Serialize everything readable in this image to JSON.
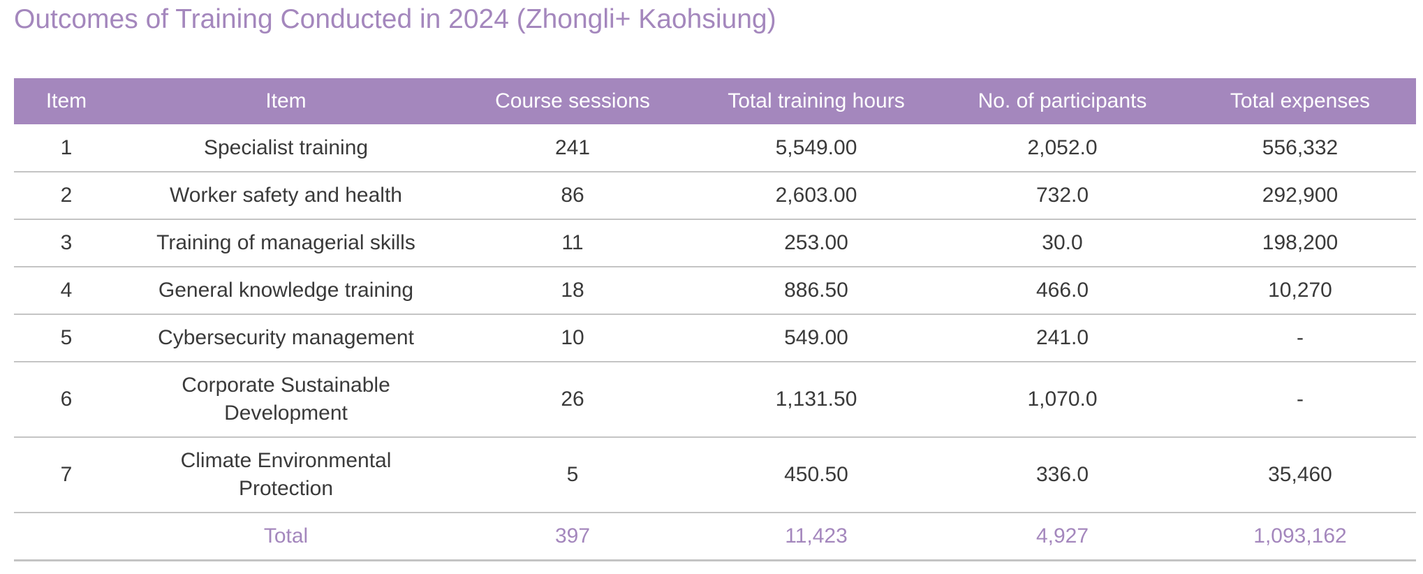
{
  "title": "Outcomes of Training Conducted in 2024 (Zhongli+ Kaohsiung)",
  "columns": [
    "Item",
    "Item",
    "Course sessions",
    "Total training hours",
    "No. of participants",
    "Total expenses"
  ],
  "rows": [
    {
      "no": "1",
      "item": "Specialist training",
      "sessions": "241",
      "hours": "5,549.00",
      "participants": "2,052.0",
      "expenses": "556,332"
    },
    {
      "no": "2",
      "item": "Worker safety and health",
      "sessions": "86",
      "hours": "2,603.00",
      "participants": "732.0",
      "expenses": "292,900"
    },
    {
      "no": "3",
      "item": "Training of managerial skills",
      "sessions": "11",
      "hours": "253.00",
      "participants": "30.0",
      "expenses": "198,200"
    },
    {
      "no": "4",
      "item": "General knowledge training",
      "sessions": "18",
      "hours": "886.50",
      "participants": "466.0",
      "expenses": "10,270"
    },
    {
      "no": "5",
      "item": "Cybersecurity management",
      "sessions": "10",
      "hours": "549.00",
      "participants": "241.0",
      "expenses": "-"
    },
    {
      "no": "6",
      "item_line1": "Corporate Sustainable",
      "item_line2": "Development",
      "sessions": "26",
      "hours": "1,131.50",
      "participants": "1,070.0",
      "expenses": "-"
    },
    {
      "no": "7",
      "item_line1": "Climate Environmental",
      "item_line2": "Protection",
      "sessions": "5",
      "hours": "450.50",
      "participants": "336.0",
      "expenses": "35,460"
    }
  ],
  "total": {
    "label": "Total",
    "sessions": "397",
    "hours": "11,423",
    "participants": "4,927",
    "expenses": "1,093,162"
  },
  "colors": {
    "accent": "#a487bd",
    "text": "#3a3a3a",
    "rule": "#c4c4c4"
  }
}
